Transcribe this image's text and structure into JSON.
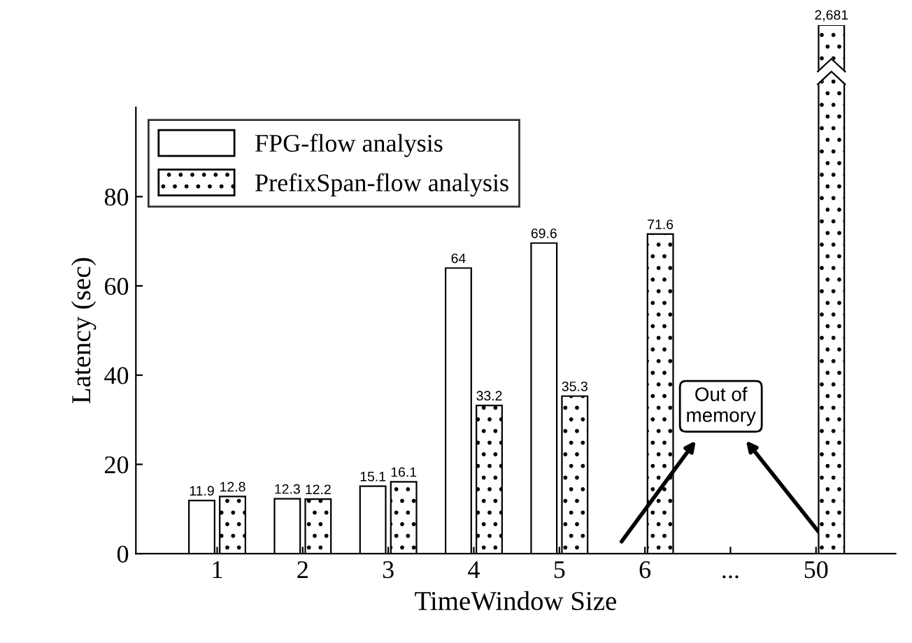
{
  "chart_data": [
    {
      "type": "bar",
      "xlabel": "TimeWindow Size",
      "ylabel": "Latency (sec)",
      "categories": [
        "1",
        "2",
        "3",
        "4",
        "5",
        "6",
        "...",
        "50"
      ],
      "series": [
        {
          "name": "FPG-flow analysis",
          "color": "#ffffff",
          "values": [
            11.9,
            12.3,
            15.1,
            64,
            69.6,
            null,
            null,
            null
          ],
          "value_labels": [
            "11.9",
            "12.3",
            "15.1",
            "64",
            "69.6",
            null,
            null,
            null
          ]
        },
        {
          "name": "PrefixSpan-flow analysis",
          "color": "#000000",
          "values": [
            12.8,
            12.2,
            16.1,
            33.2,
            35.3,
            71.6,
            null,
            null
          ],
          "value_labels": [
            "12.8",
            "12.2",
            "16.1",
            "33.2",
            "35.3",
            "71.6",
            null,
            null
          ]
        }
      ],
      "ylim": [
        0,
        100
      ],
      "yticks": [
        0,
        20,
        40,
        60,
        80
      ],
      "grid": false,
      "legend": "top left",
      "annotations": [
        "Out of\nmemory"
      ]
    },
    {
      "type": "bar",
      "categories": [
        "1",
        "2",
        "3",
        "4",
        "5",
        "6",
        "...",
        "50"
      ],
      "series": [
        {
          "color": "#000000",
          "values": [
            null,
            null,
            null,
            null,
            null,
            null,
            null,
            2681
          ],
          "value_labels": [
            null,
            null,
            null,
            null,
            null,
            null,
            null,
            "2,681"
          ]
        }
      ],
      "tick_labels": false
    }
  ]
}
